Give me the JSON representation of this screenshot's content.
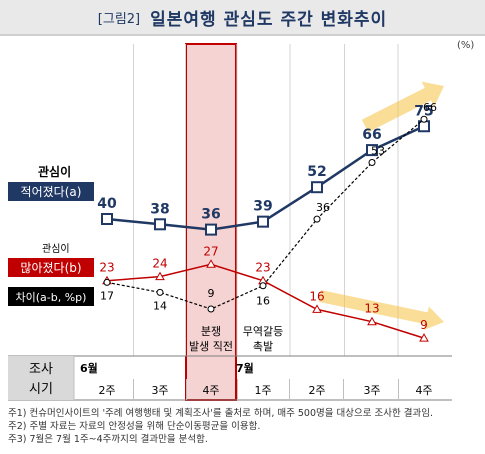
{
  "header": {
    "figure_label": "[그림2]",
    "title": "일본여행 관심도 주간 변화추이"
  },
  "chart_data": {
    "type": "line",
    "unit": "(%)",
    "x_rows": {
      "row_header": "조사 시기",
      "months": [
        "6월",
        "7월"
      ],
      "weeks": [
        "2주",
        "3주",
        "4주",
        "1주",
        "2주",
        "3주",
        "4주"
      ]
    },
    "series": [
      {
        "name": "관심이 적어졌다(a)",
        "values": [
          40,
          38,
          36,
          39,
          52,
          66,
          75
        ],
        "color": "#1f3864"
      },
      {
        "name": "관심이 많아졌다(b)",
        "values": [
          23,
          24,
          27,
          23,
          16,
          13,
          9
        ],
        "color": "#c00000"
      },
      {
        "name": "차이(a-b, %p)",
        "values": [
          17,
          14,
          9,
          16,
          36,
          53,
          66
        ],
        "color": "#000000"
      }
    ],
    "annotations": [
      {
        "text": "분쟁 발생 직전",
        "week_index": 2
      },
      {
        "text": "무역갈등 촉발",
        "week_index": 3
      }
    ],
    "legend_labels": {
      "a_top": "관심이",
      "a_bottom": "적어졌다(a)",
      "b_top": "관심이",
      "b_bottom": "많아졌다(b)",
      "d": "차이(a-b, %p)"
    },
    "highlight_week_index": 2,
    "colors": {
      "series_a": "#1f3864",
      "series_b": "#c00000",
      "highlight": "#c00000",
      "arrow": "#f5c242"
    }
  },
  "footnotes": [
    "주1) 컨슈머인사이트의 '주례 여행행태 및 계획조사'를 출처로 하며, 매주 500명을 대상으로 조사한 결과임.",
    "주2) 주별 자료는 자료의 안정성을 위해 단순이동평균을 이용함.",
    "주3) 7월은 7월 1주~4주까지의 결과만을 분석함."
  ]
}
